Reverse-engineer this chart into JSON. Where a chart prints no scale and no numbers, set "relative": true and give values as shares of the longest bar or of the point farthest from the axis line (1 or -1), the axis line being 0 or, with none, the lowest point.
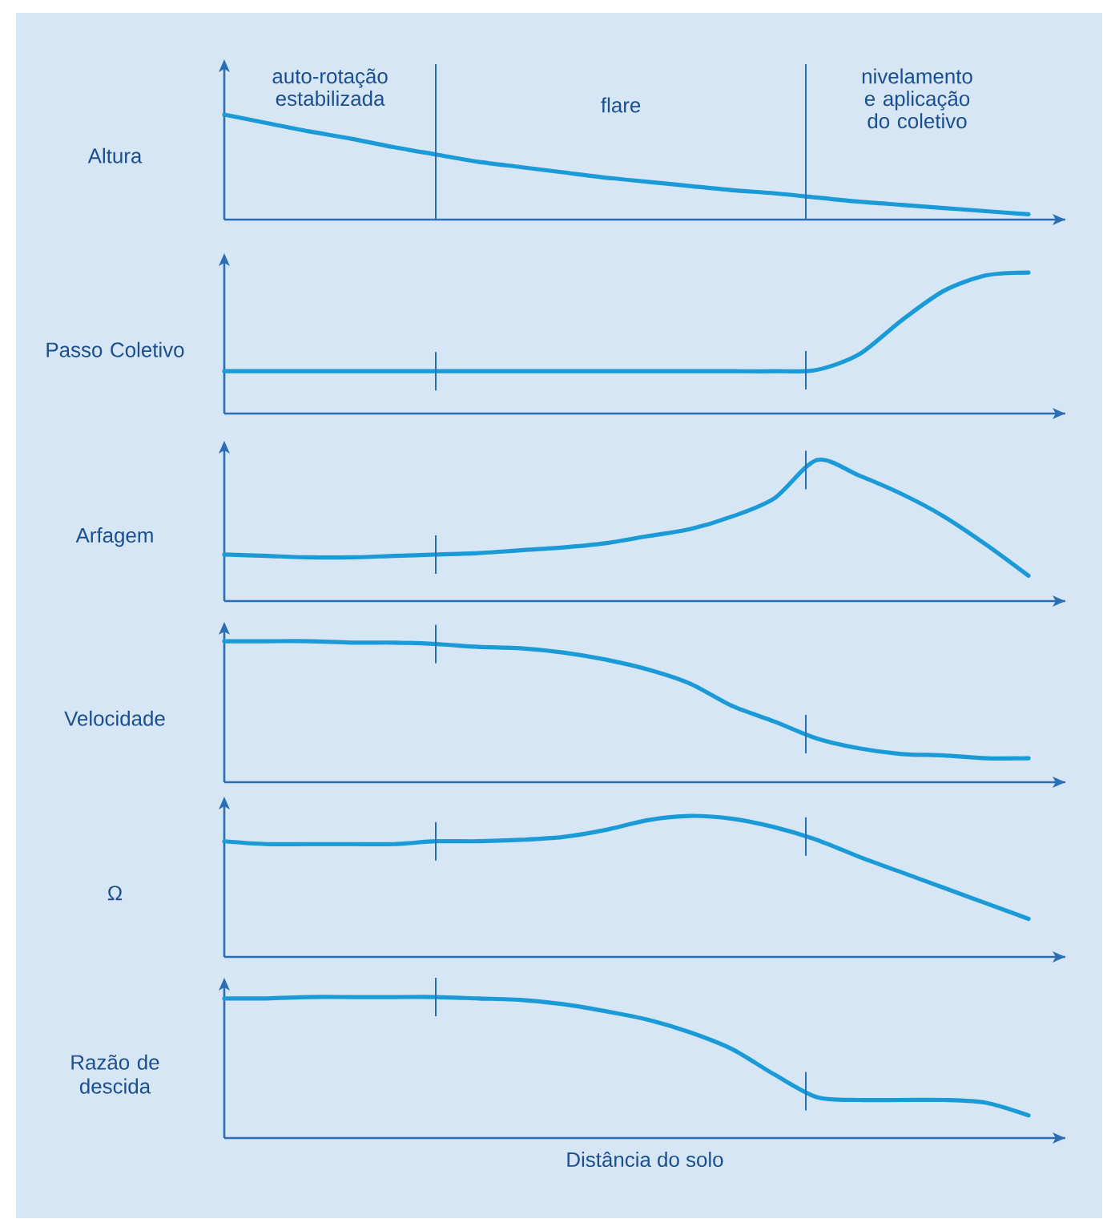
{
  "chart_data": [
    {
      "type": "line",
      "relative": true,
      "ylabel": "Altura",
      "categories": [
        null,
        null,
        null,
        null,
        null,
        null,
        null,
        null,
        null,
        null,
        null,
        null,
        null,
        null,
        null,
        null,
        null,
        null,
        null,
        null
      ],
      "color": "#1a9ad6",
      "values": [
        1,
        0.92,
        0.84,
        0.77,
        0.69,
        0.62,
        0.55,
        0.5,
        0.45,
        0.4,
        0.36,
        0.32,
        0.28,
        0.25,
        0.21,
        0.17,
        0.14,
        0.11,
        0.08,
        0.05
      ],
      "annotations": [
        "auto-rotação estabilizada",
        "flare",
        "nivelamento e aplicação do coletivo"
      ]
    },
    {
      "type": "line",
      "relative": true,
      "ylabel": "Passo Coletivo",
      "categories": [
        null,
        null,
        null,
        null,
        null,
        null,
        null,
        null,
        null,
        null,
        null,
        null,
        null,
        null,
        null,
        null,
        null,
        null,
        null,
        null
      ],
      "color": "#1a9ad6",
      "values": [
        0.3,
        0.3,
        0.3,
        0.3,
        0.3,
        0.3,
        0.3,
        0.3,
        0.3,
        0.3,
        0.3,
        0.3,
        0.3,
        0.3,
        0.31,
        0.42,
        0.66,
        0.87,
        0.98,
        1
      ]
    },
    {
      "type": "line",
      "relative": true,
      "ylabel": "Arfagem",
      "categories": [
        null,
        null,
        null,
        null,
        null,
        null,
        null,
        null,
        null,
        null,
        null,
        null,
        null,
        null,
        null,
        null,
        null,
        null,
        null,
        null
      ],
      "color": "#1a9ad6",
      "values": [
        0.33,
        0.32,
        0.31,
        0.31,
        0.32,
        0.33,
        0.34,
        0.36,
        0.38,
        0.41,
        0.46,
        0.51,
        0.6,
        0.73,
        1,
        0.89,
        0.76,
        0.6,
        0.4,
        0.18
      ]
    },
    {
      "type": "line",
      "relative": true,
      "ylabel": "Velocidade",
      "categories": [
        null,
        null,
        null,
        null,
        null,
        null,
        null,
        null,
        null,
        null,
        null,
        null,
        null,
        null,
        null,
        null,
        null,
        null,
        null,
        null
      ],
      "color": "#1a9ad6",
      "values": [
        1,
        1,
        1,
        0.99,
        0.99,
        0.98,
        0.96,
        0.95,
        0.92,
        0.87,
        0.8,
        0.7,
        0.54,
        0.43,
        0.31,
        0.24,
        0.2,
        0.19,
        0.17,
        0.17
      ]
    },
    {
      "type": "line",
      "relative": true,
      "ylabel": "Ω",
      "categories": [
        null,
        null,
        null,
        null,
        null,
        null,
        null,
        null,
        null,
        null,
        null,
        null,
        null,
        null,
        null,
        null,
        null,
        null,
        null,
        null
      ],
      "color": "#1a9ad6",
      "values": [
        0.82,
        0.8,
        0.8,
        0.8,
        0.8,
        0.82,
        0.82,
        0.83,
        0.85,
        0.9,
        0.97,
        1,
        0.98,
        0.92,
        0.83,
        0.71,
        0.6,
        0.49,
        0.38,
        0.27
      ]
    },
    {
      "type": "line",
      "relative": true,
      "ylabel": "Razão de descida",
      "xlabel": "Distância do solo",
      "categories": [
        null,
        null,
        null,
        null,
        null,
        null,
        null,
        null,
        null,
        null,
        null,
        null,
        null,
        null,
        null,
        null,
        null,
        null,
        null,
        null
      ],
      "color": "#1a9ad6",
      "values": [
        0.99,
        0.99,
        1,
        1,
        1,
        1,
        0.99,
        0.98,
        0.95,
        0.9,
        0.84,
        0.75,
        0.63,
        0.45,
        0.29,
        0.27,
        0.27,
        0.27,
        0.25,
        0.16
      ]
    }
  ]
}
